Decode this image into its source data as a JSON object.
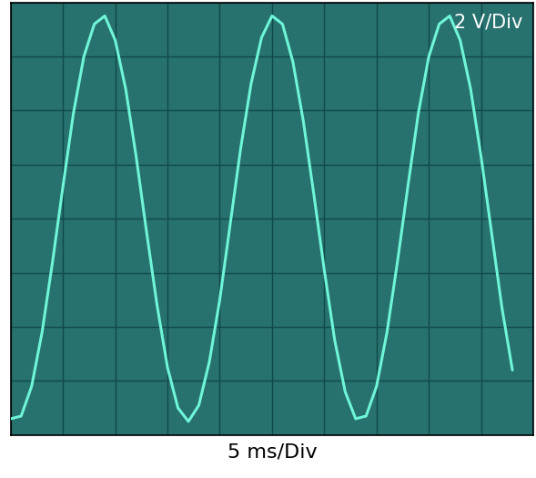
{
  "chart_data": {
    "type": "line",
    "xlabel": "5 ms/Div",
    "ylabel": "2 V/Div",
    "x": [
      0,
      1,
      2,
      3,
      4,
      5,
      6,
      7,
      8,
      9,
      10,
      11,
      12,
      13,
      14,
      15,
      16,
      17,
      18,
      19,
      20,
      21,
      22,
      23,
      24,
      25,
      26,
      27,
      28,
      29,
      30,
      31,
      32,
      33,
      34,
      35,
      36,
      37,
      38,
      39,
      40,
      41,
      42,
      43,
      44,
      45,
      46,
      47,
      48
    ],
    "values": [
      -7.4,
      -7.3,
      -6.2,
      -4.2,
      -1.6,
      1.2,
      3.9,
      6.0,
      7.2,
      7.5,
      6.6,
      4.8,
      2.3,
      -0.5,
      -3.2,
      -5.5,
      -7.0,
      -7.5,
      -6.9,
      -5.3,
      -3.0,
      -0.2,
      2.6,
      5.0,
      6.7,
      7.5,
      7.2,
      5.8,
      3.6,
      0.9,
      -1.9,
      -4.5,
      -6.4,
      -7.4,
      -7.3,
      -6.2,
      -4.2,
      -1.6,
      1.2,
      3.9,
      6.0,
      7.2,
      7.5,
      6.6,
      4.8,
      2.3,
      -0.5,
      -3.3,
      -5.6
    ],
    "color": "#6ff5d8",
    "xlim": [
      0,
      50
    ],
    "xticks": [
      0,
      5,
      10,
      15,
      20,
      25,
      30,
      35,
      40,
      45,
      50
    ],
    "ylim": [
      -8,
      8
    ],
    "yticks": [
      -8,
      -6,
      -4,
      -2,
      0,
      2,
      4,
      6,
      8
    ],
    "grid": true,
    "tick_labels": false
  }
}
